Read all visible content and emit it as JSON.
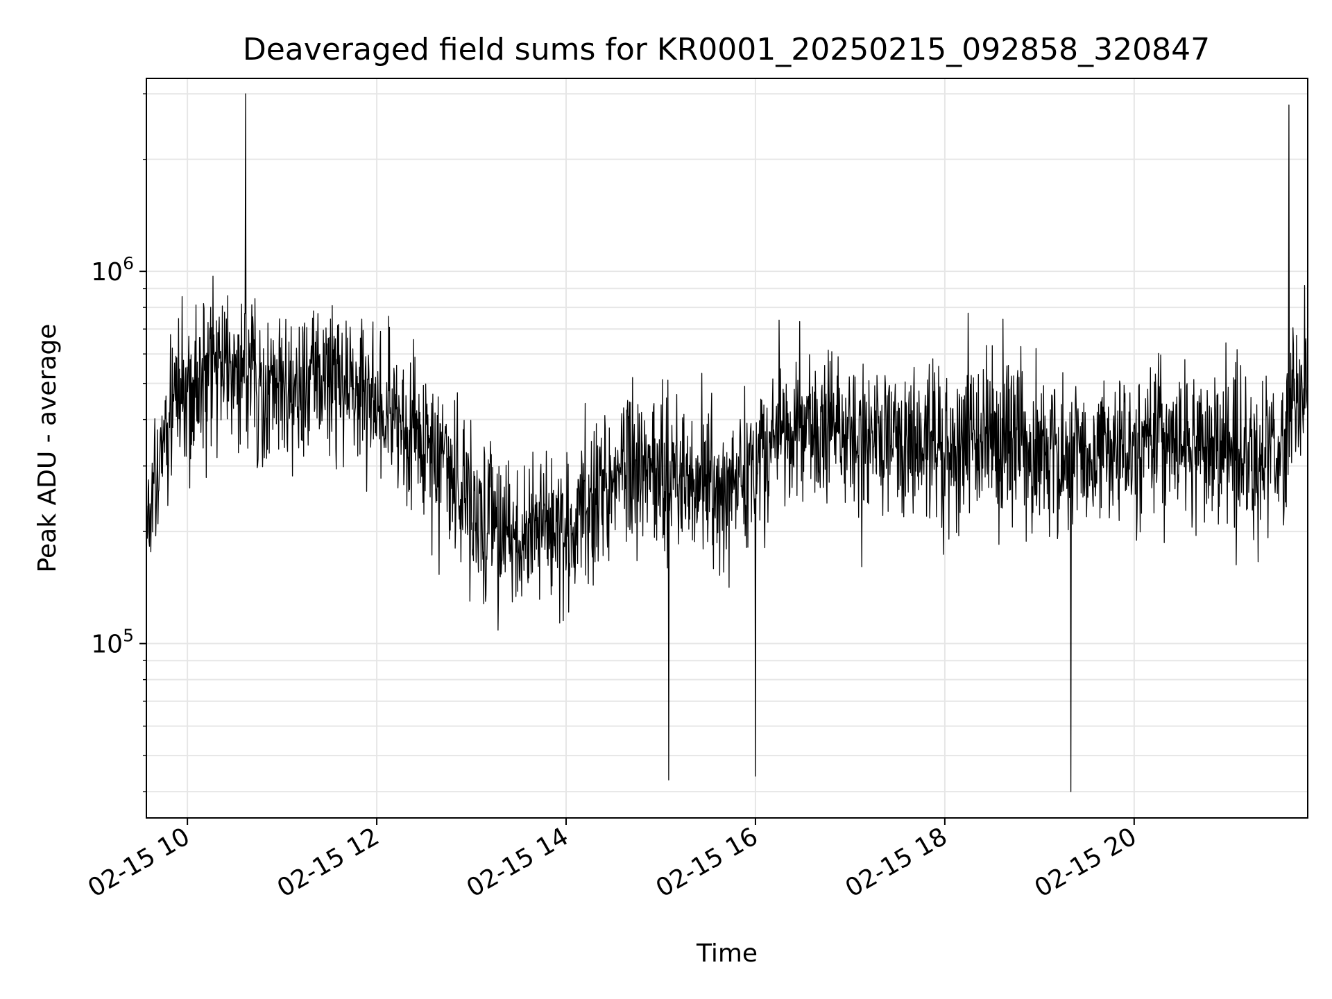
{
  "chart_data": {
    "type": "line",
    "title": "Deaveraged field sums for KR0001_20250215_092858_320847",
    "xlabel": "Time",
    "ylabel": "Peak ADU - average",
    "x_axis": {
      "type": "time",
      "range": [
        "2025-02-15 09:34",
        "2025-02-15 21:50"
      ],
      "ticks": [
        {
          "label": "02-15 10",
          "value": "2025-02-15 10:00"
        },
        {
          "label": "02-15 12",
          "value": "2025-02-15 12:00"
        },
        {
          "label": "02-15 14",
          "value": "2025-02-15 14:00"
        },
        {
          "label": "02-15 16",
          "value": "2025-02-15 16:00"
        },
        {
          "label": "02-15 18",
          "value": "2025-02-15 18:00"
        },
        {
          "label": "02-15 20",
          "value": "2025-02-15 20:00"
        }
      ]
    },
    "y_axis": {
      "scale": "log",
      "range": [
        34000,
        3300000
      ],
      "ticks": [
        {
          "base": "10",
          "exp": "5",
          "value": 100000
        },
        {
          "base": "10",
          "exp": "6",
          "value": 1000000
        }
      ]
    },
    "grid": true,
    "line_color": "#000000",
    "series": [
      {
        "x": [
          "2025-02-15 09:34",
          "2025-02-15 09:42",
          "2025-02-15 09:50",
          "2025-02-15 10:00",
          "2025-02-15 10:15",
          "2025-02-15 10:30",
          "2025-02-15 10:45",
          "2025-02-15 11:00",
          "2025-02-15 11:15",
          "2025-02-15 11:30",
          "2025-02-15 11:45",
          "2025-02-15 12:00",
          "2025-02-15 12:15",
          "2025-02-15 12:30",
          "2025-02-15 12:45",
          "2025-02-15 13:00",
          "2025-02-15 13:15",
          "2025-02-15 13:30",
          "2025-02-15 13:45",
          "2025-02-15 14:00",
          "2025-02-15 14:15",
          "2025-02-15 14:30",
          "2025-02-15 14:45",
          "2025-02-15 15:00",
          "2025-02-15 15:15",
          "2025-02-15 15:30",
          "2025-02-15 15:45",
          "2025-02-15 16:00",
          "2025-02-15 16:15",
          "2025-02-15 16:30",
          "2025-02-15 16:45",
          "2025-02-15 17:00",
          "2025-02-15 17:15",
          "2025-02-15 17:30",
          "2025-02-15 17:45",
          "2025-02-15 18:00",
          "2025-02-15 18:15",
          "2025-02-15 18:30",
          "2025-02-15 18:45",
          "2025-02-15 19:00",
          "2025-02-15 19:15",
          "2025-02-15 19:30",
          "2025-02-15 19:45",
          "2025-02-15 20:00",
          "2025-02-15 20:15",
          "2025-02-15 20:30",
          "2025-02-15 20:45",
          "2025-02-15 21:00",
          "2025-02-15 21:15",
          "2025-02-15 21:30",
          "2025-02-15 21:40",
          "2025-02-15 21:50"
        ],
        "y": [
          200000,
          320000,
          450000,
          500000,
          550000,
          560000,
          520000,
          480000,
          500000,
          520000,
          500000,
          460000,
          400000,
          350000,
          300000,
          240000,
          210000,
          200000,
          205000,
          210000,
          230000,
          280000,
          300000,
          290000,
          270000,
          260000,
          270000,
          300000,
          360000,
          380000,
          370000,
          360000,
          370000,
          360000,
          340000,
          330000,
          340000,
          350000,
          360000,
          340000,
          320000,
          310000,
          320000,
          340000,
          350000,
          350000,
          340000,
          330000,
          330000,
          300000,
          420000,
          520000
        ]
      }
    ],
    "annotations": [
      {
        "x": "2025-02-15 10:37",
        "y": 3000000,
        "kind": "spike-max"
      },
      {
        "x": "2025-02-15 21:38",
        "y": 2800000,
        "kind": "spike-max"
      },
      {
        "x": "2025-02-15 19:20",
        "y": 40000,
        "kind": "spike-min"
      },
      {
        "x": "2025-02-15 15:05",
        "y": 43000,
        "kind": "spike-min"
      },
      {
        "x": "2025-02-15 16:00",
        "y": 44000,
        "kind": "spike-min"
      }
    ]
  }
}
